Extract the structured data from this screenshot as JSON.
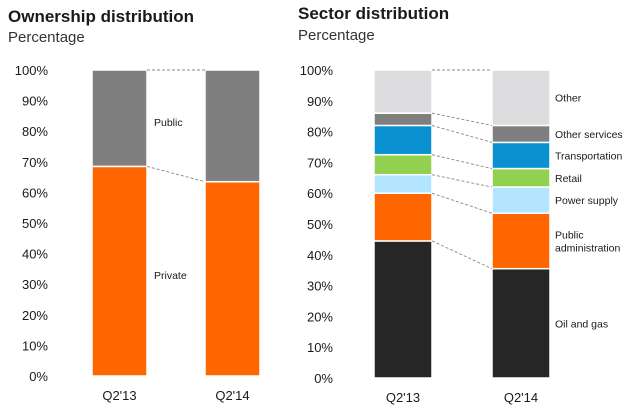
{
  "chart_data": [
    {
      "type": "bar",
      "stacked": true,
      "title": "Ownership distribution",
      "subtitle": "Percentage",
      "categories": [
        "Q2'13",
        "Q2'14"
      ],
      "ylim": [
        0,
        100
      ],
      "yticks": [
        "0%",
        "10%",
        "20%",
        "30%",
        "40%",
        "50%",
        "60%",
        "70%",
        "80%",
        "90%",
        "100%"
      ],
      "series": [
        {
          "name": "Private",
          "values": [
            68.5,
            63.5
          ],
          "color": "#ff6600"
        },
        {
          "name": "Public",
          "values": [
            31.5,
            36.5
          ],
          "color": "#7f7f7f"
        }
      ],
      "connectors": "dashed",
      "grid": false
    },
    {
      "type": "bar",
      "stacked": true,
      "title": "Sector distribution",
      "subtitle": "Percentage",
      "categories": [
        "Q2'13",
        "Q2'14"
      ],
      "ylim": [
        0,
        100
      ],
      "yticks": [
        "0%",
        "10%",
        "20%",
        "30%",
        "40%",
        "50%",
        "60%",
        "70%",
        "80%",
        "90%",
        "100%"
      ],
      "series": [
        {
          "name": "Oil and gas",
          "values": [
            44.5,
            35.5
          ],
          "color": "#262626"
        },
        {
          "name": "Public administration",
          "label_lines": [
            "Public",
            "administration"
          ],
          "values": [
            15.5,
            18.0
          ],
          "color": "#ff6600"
        },
        {
          "name": "Power supply",
          "values": [
            6.0,
            8.5
          ],
          "color": "#b3e5ff"
        },
        {
          "name": "Retail",
          "values": [
            6.5,
            6.0
          ],
          "color": "#92d050"
        },
        {
          "name": "Transportation",
          "values": [
            9.5,
            8.5
          ],
          "color": "#0b91d1"
        },
        {
          "name": "Other services",
          "values": [
            4.0,
            5.5
          ],
          "color": "#7f7f7f"
        },
        {
          "name": "Other",
          "values": [
            14.0,
            18.0
          ],
          "color": "#dcdcdf"
        }
      ],
      "connectors": "dashed",
      "grid": false
    }
  ]
}
